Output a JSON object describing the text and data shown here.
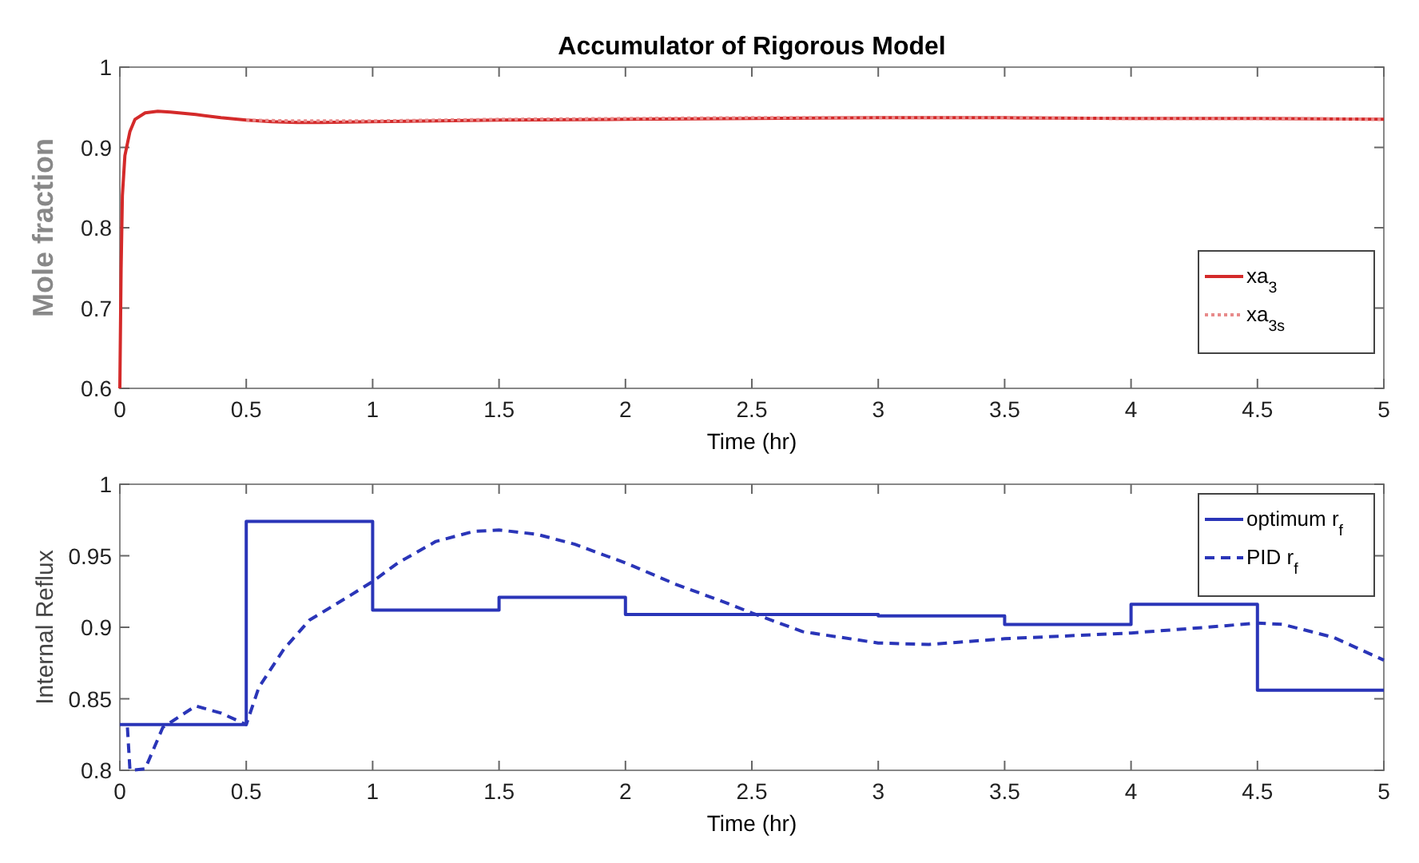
{
  "chart_data": [
    {
      "type": "line",
      "title": "Accumulator of Rigorous Model",
      "xlabel": "Time (hr)",
      "ylabel": "Mole fraction",
      "xlim": [
        0,
        5
      ],
      "ylim": [
        0.6,
        1
      ],
      "xticks": [
        0,
        0.5,
        1,
        1.5,
        2,
        2.5,
        3,
        3.5,
        4,
        4.5,
        5
      ],
      "yticks": [
        0.6,
        0.7,
        0.8,
        0.9,
        1
      ],
      "grid": false,
      "legend": "bottom right",
      "series": [
        {
          "name": "xa$_{3}$",
          "color": "#d42a2a",
          "line_style": "solid",
          "x": [
            0,
            0.005,
            0.01,
            0.02,
            0.04,
            0.06,
            0.1,
            0.15,
            0.2,
            0.3,
            0.4,
            0.5,
            0.6,
            0.7,
            0.8,
            1,
            1.5,
            2,
            2.5,
            3,
            3.5,
            4,
            4.5,
            5
          ],
          "values": [
            0.6,
            0.75,
            0.84,
            0.89,
            0.92,
            0.935,
            0.943,
            0.945,
            0.944,
            0.941,
            0.937,
            0.934,
            0.932,
            0.931,
            0.931,
            0.932,
            0.934,
            0.935,
            0.936,
            0.937,
            0.937,
            0.936,
            0.936,
            0.935
          ]
        },
        {
          "name": "xa$_{3s}$",
          "color": "#e88a8a",
          "line_style": "dotted",
          "x": [
            0.5,
            0.7,
            1,
            1.5,
            2,
            2.5,
            3,
            3.5,
            4,
            4.5,
            5
          ],
          "values": [
            0.934,
            0.933,
            0.933,
            0.935,
            0.936,
            0.937,
            0.937,
            0.937,
            0.936,
            0.936,
            0.935
          ]
        }
      ]
    },
    {
      "type": "line",
      "xlabel": "Time (hr)",
      "ylabel": "Internal Reflux",
      "xlim": [
        0,
        5
      ],
      "ylim": [
        0.8,
        1
      ],
      "xticks": [
        0,
        0.5,
        1,
        1.5,
        2,
        2.5,
        3,
        3.5,
        4,
        4.5,
        5
      ],
      "yticks": [
        0.8,
        0.85,
        0.9,
        0.95,
        1
      ],
      "grid": false,
      "legend": "top right",
      "series": [
        {
          "name": "optimum r$_{f}$",
          "type": "step",
          "color": "#2a35b8",
          "line_style": "solid",
          "x": [
            0,
            0.5,
            1,
            1.5,
            2,
            3,
            3.5,
            4,
            4.5,
            5
          ],
          "values": [
            0.832,
            0.974,
            0.912,
            0.921,
            0.909,
            0.908,
            0.902,
            0.916,
            0.856,
            0.856
          ]
        },
        {
          "name": "PID r$_{f}$",
          "color": "#2a35b8",
          "line_style": "dashed",
          "x": [
            0.03,
            0.04,
            0.1,
            0.17,
            0.3,
            0.4,
            0.5,
            0.55,
            0.65,
            0.75,
            0.9,
            1,
            1.1,
            1.25,
            1.4,
            1.5,
            1.65,
            1.8,
            2,
            2.2,
            2.4,
            2.5,
            2.7,
            3,
            3.2,
            3.5,
            4,
            4.3,
            4.5,
            4.6,
            4.8,
            5
          ],
          "values": [
            0.83,
            0.8,
            0.801,
            0.83,
            0.845,
            0.84,
            0.832,
            0.858,
            0.885,
            0.905,
            0.921,
            0.932,
            0.945,
            0.96,
            0.967,
            0.968,
            0.965,
            0.958,
            0.945,
            0.93,
            0.917,
            0.91,
            0.897,
            0.889,
            0.888,
            0.892,
            0.896,
            0.9,
            0.903,
            0.902,
            0.893,
            0.877
          ]
        }
      ]
    }
  ]
}
